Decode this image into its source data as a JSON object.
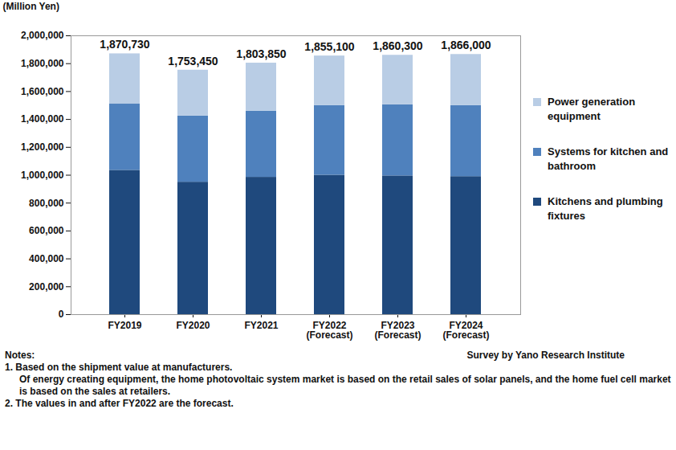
{
  "chart_data": {
    "type": "bar",
    "stacked": true,
    "y_label": "(Million Yen)",
    "categories": [
      "FY2019",
      "FY2020",
      "FY2021",
      "FY2022\n(Forecast)",
      "FY2023\n(Forecast)",
      "FY2024\n(Forecast)"
    ],
    "series": [
      {
        "name": "Kitchens and plumbing fixtures",
        "color": "#1f497d",
        "values": [
          1035000,
          950000,
          985000,
          1000000,
          995000,
          990000
        ]
      },
      {
        "name": "Systems for kitchen and bathroom",
        "color": "#4f81bd",
        "values": [
          475000,
          475000,
          475000,
          500000,
          510000,
          510000
        ]
      },
      {
        "name": "Power generation equipment",
        "color": "#b9cde5",
        "values": [
          360730,
          328450,
          343850,
          355100,
          355300,
          366000
        ]
      }
    ],
    "totals": {
      "values": [
        1870730,
        1753450,
        1803850,
        1855100,
        1860300,
        1866000
      ],
      "value_labels": [
        "1,870,730",
        "1,753,450",
        "1,803,850",
        "1,855,100",
        "1,860,300",
        "1,866,000"
      ]
    },
    "ylim": [
      0,
      2000000
    ],
    "yticks": [
      0,
      {
        "value": 200000,
        "label": "200,000"
      },
      {
        "value": 400000,
        "label": "400,000"
      },
      {
        "value": 600000,
        "label": "600,000"
      },
      {
        "value": 800000,
        "label": "800,000"
      },
      {
        "value": 1000000,
        "label": "1,000,000"
      },
      {
        "value": 1200000,
        "label": "1,200,000"
      },
      {
        "value": 1400000,
        "label": "1,400,000"
      },
      {
        "value": 1600000,
        "label": "1,600,000"
      },
      {
        "value": 1800000,
        "label": "1,800,000"
      },
      {
        "value": 2000000,
        "label": "2,000,000"
      }
    ],
    "grid": false,
    "legend": "right",
    "notes": [
      "Notes:",
      "1. Based on the shipment value at manufacturers.",
      "Of energy creating equipment, the home photovoltaic system market is based on the retail sales of solar panels, and the home fuel cell market is based on the sales at retailers.",
      "2. The values in and after FY2022 are the forecast."
    ],
    "source": "Survey by Yano Research Institute"
  }
}
